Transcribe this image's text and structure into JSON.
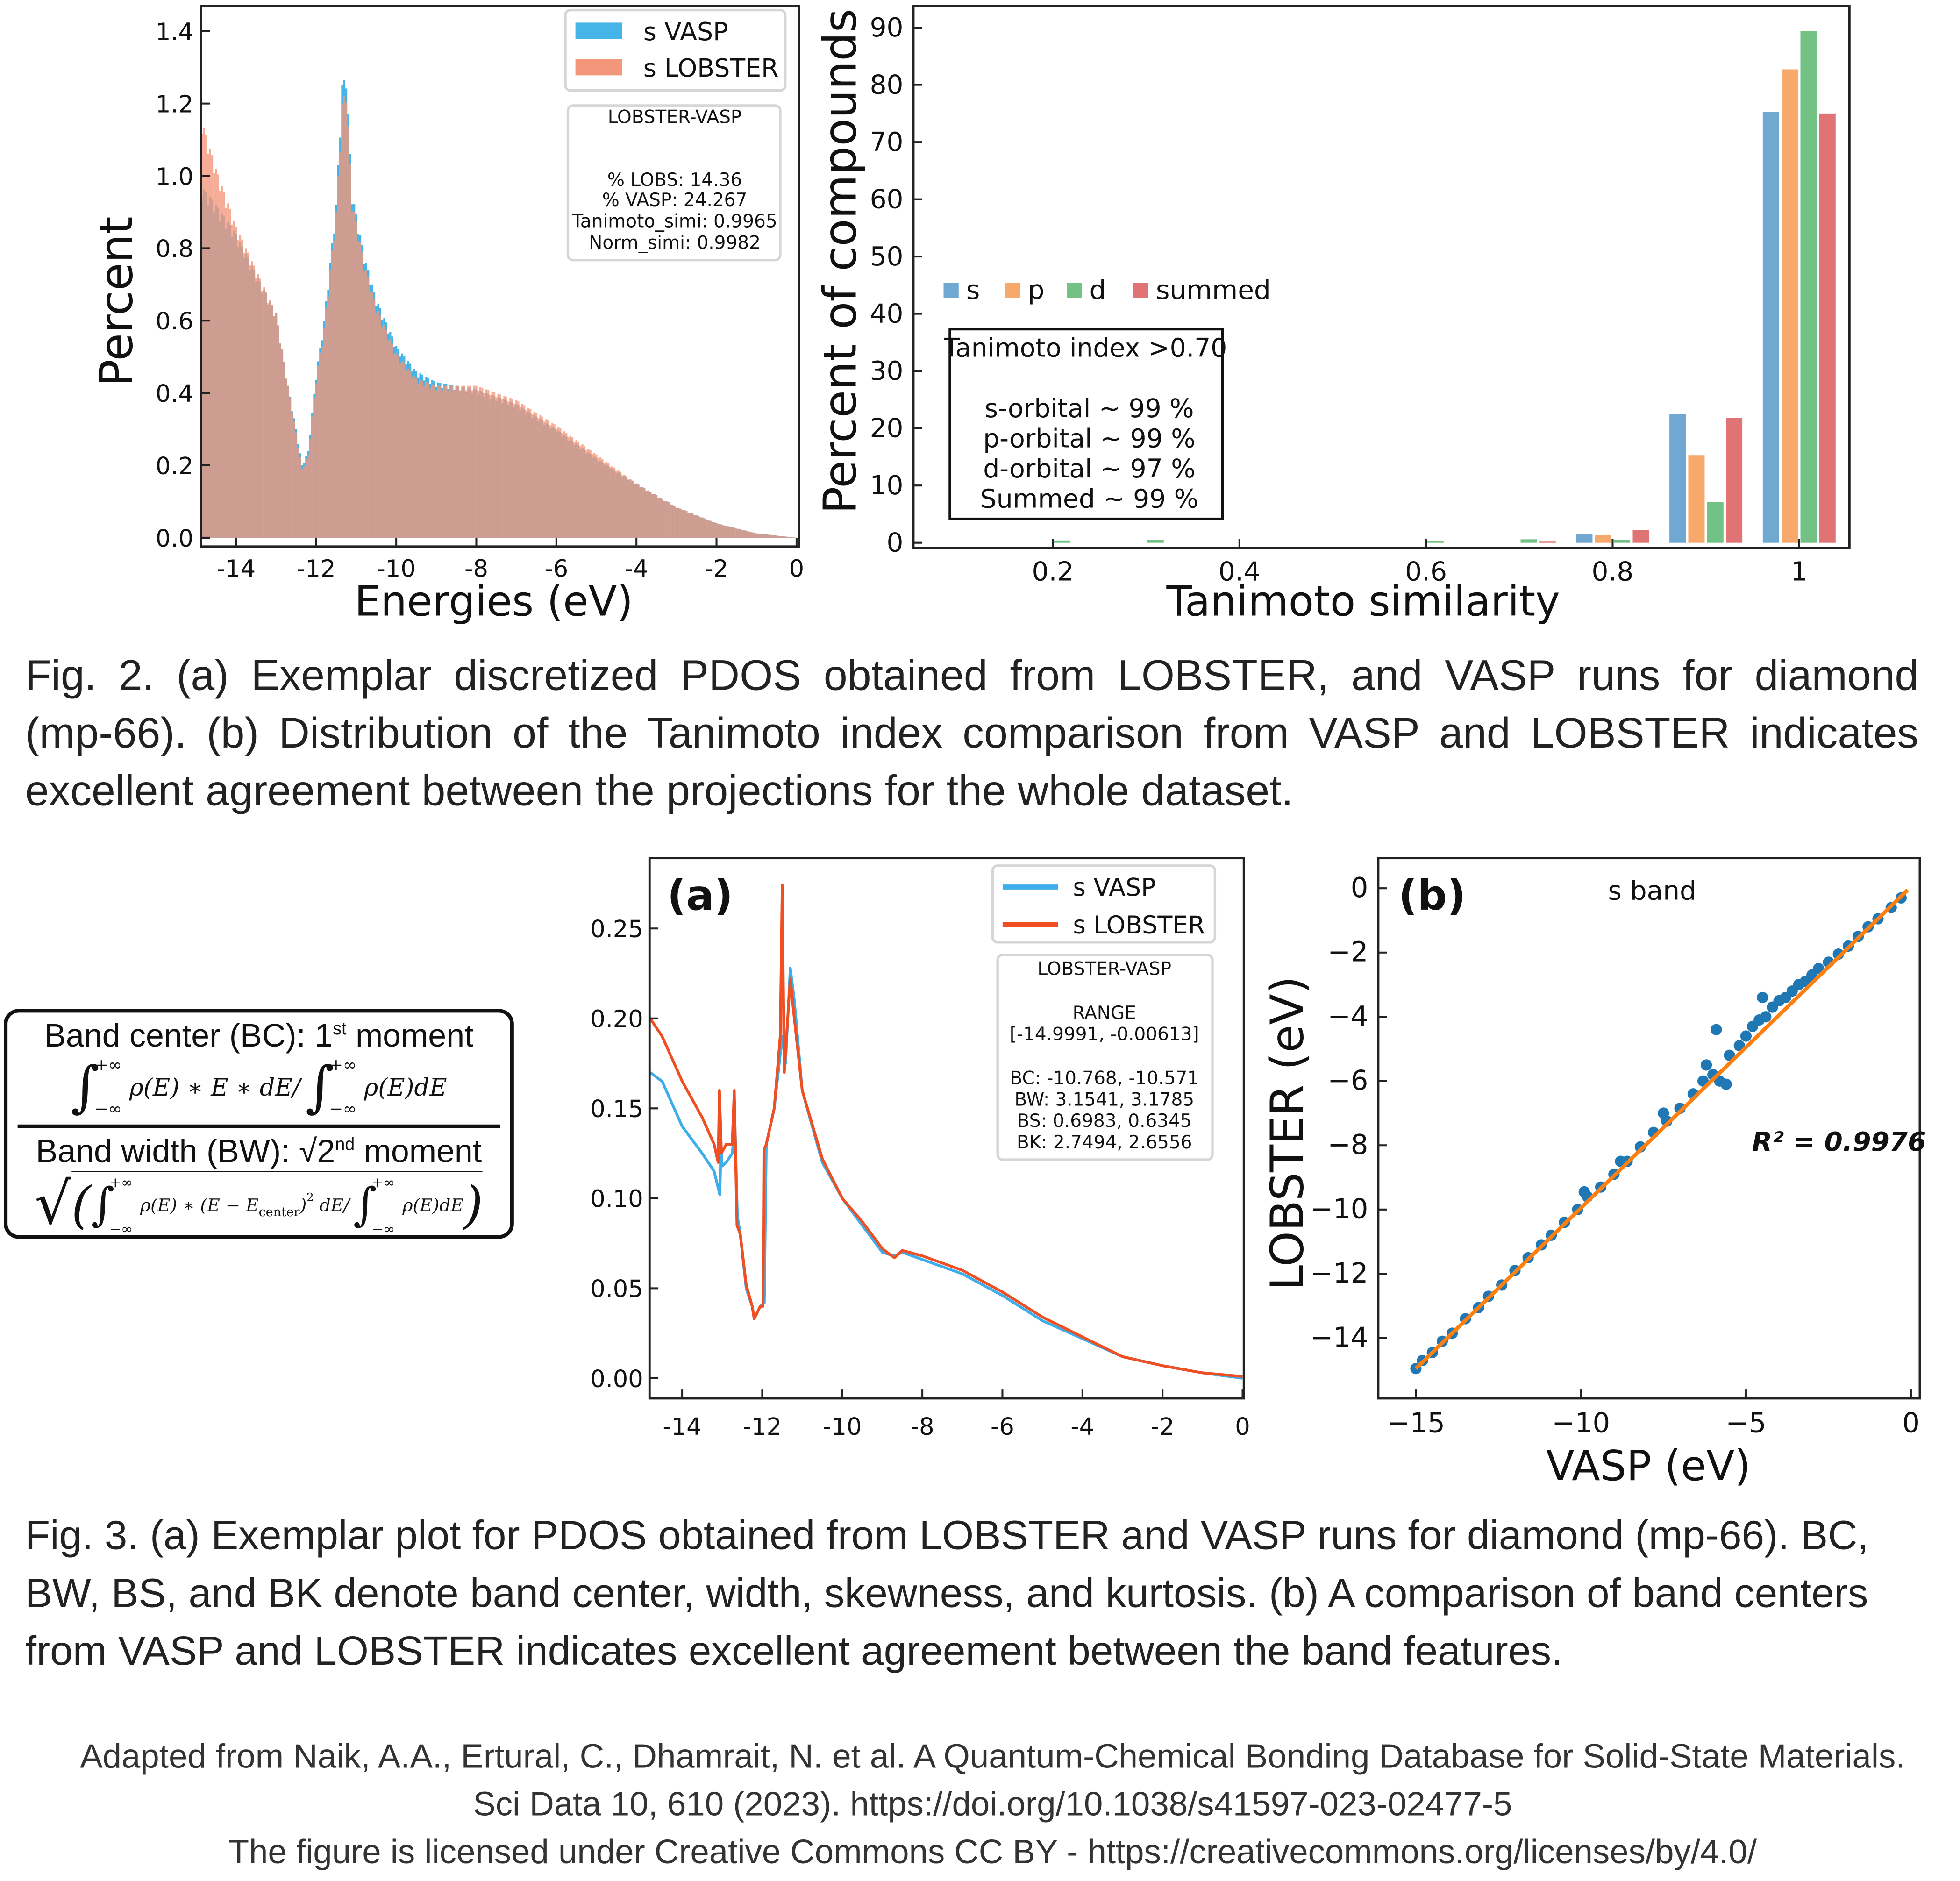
{
  "fig2a": {
    "type": "bar",
    "xlabel": "Energies (eV)",
    "ylabel": "Percent",
    "xlim": [
      -14.85,
      0.05
    ],
    "ylim": [
      -0.02,
      1.48
    ],
    "xticks": [
      -14,
      -12,
      -10,
      -8,
      -6,
      -4,
      -2,
      0
    ],
    "xtick_labels": [
      "-14",
      "-12",
      "-10",
      "-8",
      "-6",
      "-4",
      "-2",
      "0"
    ],
    "yticks": [
      0.0,
      0.2,
      0.4,
      0.6,
      0.8,
      1.0,
      1.2,
      1.4
    ],
    "ytick_labels": [
      "0.0",
      "0.2",
      "0.4",
      "0.6",
      "0.8",
      "1.0",
      "1.2",
      "1.4"
    ],
    "legend": [
      "s VASP",
      "s LOBSTER"
    ],
    "colors": {
      "vasp": "#45b4e6",
      "lobster": "#f4967a"
    },
    "series": [
      {
        "name": "s VASP",
        "x": [
          -14.85,
          -14.5,
          -14.0,
          -13.5,
          -13.0,
          -12.7,
          -12.5,
          -12.35,
          -12.2,
          -12.0,
          -11.8,
          -11.5,
          -11.35,
          -11.25,
          -11.1,
          -10.8,
          -10.5,
          -10.0,
          -9.5,
          -9.0,
          -8.5,
          -8.0,
          -7.0,
          -6.0,
          -5.0,
          -4.0,
          -3.0,
          -2.0,
          -1.0,
          0.0
        ],
        "y": [
          0.97,
          0.92,
          0.84,
          0.73,
          0.62,
          0.42,
          0.3,
          0.2,
          0.24,
          0.45,
          0.6,
          0.92,
          1.25,
          1.28,
          0.95,
          0.78,
          0.66,
          0.53,
          0.46,
          0.43,
          0.42,
          0.41,
          0.37,
          0.3,
          0.22,
          0.15,
          0.085,
          0.04,
          0.012,
          0.0
        ]
      },
      {
        "name": "s LOBSTER",
        "x": [
          -14.85,
          -14.5,
          -14.0,
          -13.5,
          -13.0,
          -12.7,
          -12.5,
          -12.35,
          -12.2,
          -12.0,
          -11.8,
          -11.5,
          -11.35,
          -11.25,
          -11.1,
          -10.8,
          -10.5,
          -10.0,
          -9.5,
          -9.0,
          -8.5,
          -8.0,
          -7.0,
          -6.0,
          -5.0,
          -4.0,
          -3.0,
          -2.0,
          -1.0,
          0.0
        ],
        "y": [
          1.15,
          1.02,
          0.86,
          0.74,
          0.62,
          0.42,
          0.29,
          0.19,
          0.23,
          0.44,
          0.58,
          0.9,
          1.2,
          1.24,
          0.93,
          0.76,
          0.64,
          0.51,
          0.44,
          0.42,
          0.42,
          0.42,
          0.38,
          0.31,
          0.23,
          0.15,
          0.085,
          0.04,
          0.012,
          0.0
        ]
      }
    ],
    "textbox": {
      "title": "LOBSTER-VASP",
      "lines": [
        "% LOBS: 14.36",
        "% VASP: 24.267",
        "Tanimoto_simi: 0.9965",
        "Norm_simi: 0.9982"
      ]
    }
  },
  "fig2b": {
    "type": "bar",
    "xlabel": "Tanimoto similarity",
    "ylabel": "Percent of compounds",
    "xlim": [
      0.05,
      1.05
    ],
    "ylim": [
      0,
      90
    ],
    "xticks": [
      0.2,
      0.4,
      0.6,
      0.8,
      1.0
    ],
    "xtick_labels": [
      "0.2",
      "0.4",
      "0.6",
      "0.8",
      "1"
    ],
    "yticks": [
      0,
      10,
      20,
      30,
      40,
      50,
      60,
      70,
      80,
      90
    ],
    "ytick_labels": [
      "0",
      "10",
      "20",
      "30",
      "40",
      "50",
      "60",
      "70",
      "80",
      "90"
    ],
    "categories": [
      0.2,
      0.3,
      0.6,
      0.7,
      0.8,
      0.9,
      1.0
    ],
    "series": [
      {
        "name": "s",
        "color": "#6fa8d0",
        "values": [
          0,
          0,
          0,
          0,
          1.5,
          22.5,
          75.3
        ]
      },
      {
        "name": "p",
        "color": "#f7a96b",
        "values": [
          0,
          0,
          0,
          0,
          1.3,
          15.3,
          82.7
        ]
      },
      {
        "name": "d",
        "color": "#72c285",
        "values": [
          0.4,
          0.5,
          0.3,
          0.6,
          0.5,
          7.1,
          89.4
        ]
      },
      {
        "name": "summed",
        "color": "#e07474",
        "values": [
          0,
          0,
          0,
          0.2,
          2.2,
          21.8,
          75.0
        ]
      }
    ],
    "legend_position": "upper-middle",
    "textbox": {
      "title": "Tanimoto index >0.70",
      "lines": [
        "s-orbital ~ 99 %",
        "p-orbital ~ 99 %",
        "d-orbital ~ 97 %",
        "Summed ~ 99 %"
      ]
    }
  },
  "caption2": [
    "Fig. 2. (a) Exemplar discretized PDOS obtained from LOBSTER, and VASP runs for diamond",
    "(mp-66). (b) Distribution of the Tanimoto index comparison from VASP and LOBSTER indicates",
    "excellent agreement between the projections for the whole dataset."
  ],
  "formula": {
    "bc_title": "Band center (BC): 1",
    "bc_sup": "st",
    "bc_title_end": " moment",
    "upper": "+∞",
    "lower": "−∞",
    "bc_integrand": "ρ(E) ∗ E ∗ dE/",
    "bc_denominator": "ρ(E)dE",
    "bw_title": "Band width (BW): √2",
    "bw_sup": "nd",
    "bw_title_end": " moment",
    "bw_integrand": "ρ(E) ∗ (E − E",
    "bw_sub": "center",
    "bw_integrand_end": ")",
    "bw_power": "2",
    "bw_integrand_tail": " dE/",
    "bw_denominator": "ρ(E)dE",
    "open_paren": "(",
    "close_paren": ")",
    "root": "√"
  },
  "fig3a": {
    "type": "line",
    "panel_label": "(a)",
    "xlim": [
      -14.82,
      0.0
    ],
    "ylim": [
      -0.011,
      0.289
    ],
    "xticks": [
      -14,
      -12,
      -10,
      -8,
      -6,
      -4,
      -2,
      0
    ],
    "xtick_labels": [
      "-14",
      "-12",
      "-10",
      "-8",
      "-6",
      "-4",
      "-2",
      "0"
    ],
    "yticks": [
      0.0,
      0.05,
      0.1,
      0.15,
      0.2,
      0.25
    ],
    "ytick_labels": [
      "0.00",
      "0.05",
      "0.10",
      "0.15",
      "0.20",
      "0.25"
    ],
    "series": [
      {
        "name": "s VASP",
        "color": "#3daee9",
        "x": [
          -14.8,
          -14.5,
          -14.0,
          -13.5,
          -13.2,
          -13.06,
          -13.03,
          -13.0,
          -12.9,
          -12.75,
          -12.68,
          -12.62,
          -12.55,
          -12.4,
          -12.25,
          -12.2,
          -12.05,
          -11.95,
          -11.9,
          -11.7,
          -11.5,
          -11.42,
          -11.3,
          -11.2,
          -11.0,
          -10.5,
          -10.0,
          -9.5,
          -9.0,
          -8.7,
          -8.5,
          -8.0,
          -7.0,
          -6.0,
          -5.0,
          -4.0,
          -3.0,
          -2.0,
          -1.0,
          0.0
        ],
        "y": [
          0.17,
          0.165,
          0.14,
          0.125,
          0.115,
          0.102,
          0.13,
          0.118,
          0.12,
          0.125,
          0.14,
          0.09,
          0.08,
          0.05,
          0.04,
          0.033,
          0.04,
          0.042,
          0.13,
          0.15,
          0.19,
          0.175,
          0.228,
          0.21,
          0.16,
          0.12,
          0.1,
          0.085,
          0.07,
          0.068,
          0.07,
          0.066,
          0.058,
          0.046,
          0.032,
          0.022,
          0.012,
          0.007,
          0.003,
          0.0
        ]
      },
      {
        "name": "s LOBSTER",
        "color": "#f04e23",
        "x": [
          -14.8,
          -14.5,
          -14.0,
          -13.5,
          -13.2,
          -13.1,
          -13.07,
          -13.02,
          -12.9,
          -12.75,
          -12.7,
          -12.63,
          -12.55,
          -12.4,
          -12.25,
          -12.2,
          -12.05,
          -11.98,
          -11.96,
          -11.9,
          -11.7,
          -11.55,
          -11.5,
          -11.45,
          -11.3,
          -11.2,
          -11.0,
          -10.5,
          -10.0,
          -9.5,
          -9.0,
          -8.7,
          -8.5,
          -8.0,
          -7.0,
          -6.0,
          -5.0,
          -4.0,
          -3.0,
          -2.0,
          -1.0,
          0.0
        ],
        "y": [
          0.2,
          0.19,
          0.165,
          0.145,
          0.13,
          0.12,
          0.16,
          0.125,
          0.13,
          0.13,
          0.16,
          0.085,
          0.08,
          0.052,
          0.04,
          0.033,
          0.04,
          0.04,
          0.127,
          0.13,
          0.15,
          0.19,
          0.274,
          0.17,
          0.222,
          0.2,
          0.16,
          0.122,
          0.1,
          0.087,
          0.072,
          0.067,
          0.071,
          0.068,
          0.06,
          0.048,
          0.034,
          0.023,
          0.012,
          0.007,
          0.003,
          0.001
        ]
      }
    ],
    "textbox": {
      "title": "LOBSTER-VASP",
      "range_label": "RANGE",
      "range": "[-14.9991, -0.00613]",
      "lines": [
        "BC: -10.768, -10.571",
        "BW: 3.1541, 3.1785",
        "BS: 0.6983, 0.6345",
        "BK: 2.7494, 2.6556"
      ]
    }
  },
  "fig3b": {
    "type": "scatter",
    "panel_label": "(b)",
    "title": "s band",
    "annotation": "R² = 0.9976",
    "xlabel": "VASP (eV)",
    "ylabel": "LOBSTER (eV)",
    "xlim": [
      -16.1,
      0.3
    ],
    "ylim": [
      -15.8,
      0.9
    ],
    "xticks": [
      -15,
      -10,
      -5,
      0
    ],
    "xtick_labels": [
      "−15",
      "−10",
      "−5",
      "0"
    ],
    "yticks": [
      0,
      -2,
      -4,
      -6,
      -8,
      -10,
      -12,
      -14
    ],
    "ytick_labels": [
      "0",
      "−2",
      "−4",
      "−6",
      "−8",
      "−10",
      "−12",
      "−14"
    ],
    "colors": {
      "points": "#1f77b4",
      "fit": "#ff7f0e"
    },
    "fit_line": {
      "x": [
        -15,
        -0.1
      ],
      "y": [
        -14.95,
        -0.05
      ]
    },
    "points": [
      [
        -15,
        -14.95
      ],
      [
        -14.8,
        -14.7
      ],
      [
        -14.5,
        -14.45
      ],
      [
        -14.2,
        -14.1
      ],
      [
        -13.9,
        -13.85
      ],
      [
        -13.5,
        -13.4
      ],
      [
        -13.1,
        -13.05
      ],
      [
        -12.8,
        -12.7
      ],
      [
        -12.4,
        -12.35
      ],
      [
        -12,
        -11.9
      ],
      [
        -11.6,
        -11.5
      ],
      [
        -11.2,
        -11.1
      ],
      [
        -10.9,
        -10.8
      ],
      [
        -10.5,
        -10.4
      ],
      [
        -10.1,
        -10
      ],
      [
        -9.8,
        -9.6
      ],
      [
        -9.9,
        -9.45
      ],
      [
        -9.4,
        -9.3
      ],
      [
        -9,
        -8.9
      ],
      [
        -8.6,
        -8.5
      ],
      [
        -8.2,
        -8.05
      ],
      [
        -7.8,
        -7.6
      ],
      [
        -7.4,
        -7.25
      ],
      [
        -7,
        -6.85
      ],
      [
        -6.6,
        -6.4
      ],
      [
        -6.3,
        -6.0
      ],
      [
        -6.0,
        -5.8
      ],
      [
        -5.8,
        -6.0
      ],
      [
        -5.5,
        -5.2
      ],
      [
        -5.2,
        -4.9
      ],
      [
        -5.0,
        -4.6
      ],
      [
        -4.8,
        -4.3
      ],
      [
        -4.6,
        -4.1
      ],
      [
        -4.4,
        -4.0
      ],
      [
        -4.2,
        -3.7
      ],
      [
        -4.0,
        -3.5
      ],
      [
        -3.8,
        -3.4
      ],
      [
        -3.6,
        -3.2
      ],
      [
        -3.4,
        -3.0
      ],
      [
        -3.2,
        -2.9
      ],
      [
        -3.0,
        -2.7
      ],
      [
        -2.8,
        -2.5
      ],
      [
        -2.5,
        -2.3
      ],
      [
        -2.2,
        -2.05
      ],
      [
        -1.9,
        -1.8
      ],
      [
        -1.6,
        -1.5
      ],
      [
        -1.3,
        -1.2
      ],
      [
        -1.0,
        -0.95
      ],
      [
        -0.6,
        -0.6
      ],
      [
        -0.3,
        -0.3
      ],
      [
        -5.9,
        -4.4
      ],
      [
        -6.2,
        -5.5
      ],
      [
        -5.6,
        -6.1
      ],
      [
        -4.5,
        -3.4
      ],
      [
        -7.5,
        -7.0
      ],
      [
        -8.8,
        -8.5
      ]
    ]
  },
  "caption3": [
    "Fig. 3. (a) Exemplar plot for PDOS obtained from LOBSTER and VASP runs for diamond (mp-66). BC,",
    "BW, BS, and BK denote band center, width, skewness, and kurtosis. (b) A comparison of band centers",
    "from VASP and LOBSTER indicates excellent agreement between the band features."
  ],
  "attribution": [
    "Adapted from Naik, A.A., Ertural, C., Dhamrait, N. et al. A Quantum-Chemical Bonding Database for Solid-State Materials.",
    "Sci Data 10, 610 (2023). https://doi.org/10.1038/s41597-023-02477-5",
    "The figure is licensed under Creative Commons CC BY - https://creativecommons.org/licenses/by/4.0/"
  ]
}
